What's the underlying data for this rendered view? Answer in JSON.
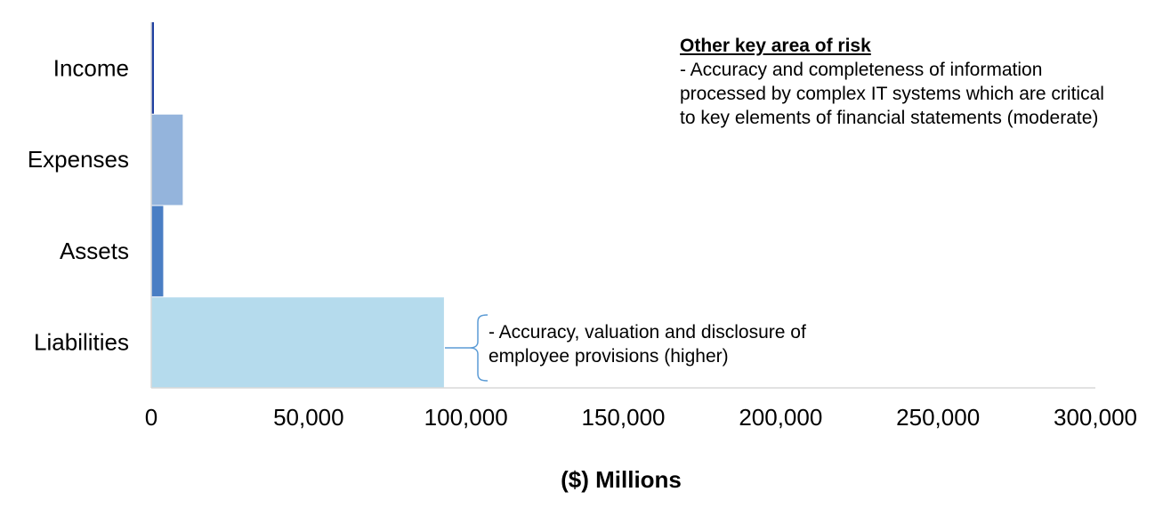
{
  "chart_data": {
    "type": "bar",
    "orientation": "horizontal",
    "categories": [
      "Income",
      "Expenses",
      "Assets",
      "Liabilities"
    ],
    "values": [
      700,
      10000,
      3800,
      93000
    ],
    "colors": [
      "#1f3fa0",
      "#94b4dc",
      "#4a7ec4",
      "#b5dbed"
    ],
    "xlabel": "($) Millions",
    "xlim": [
      0,
      300000
    ],
    "xticks": [
      0,
      50000,
      100000,
      150000,
      200000,
      250000,
      300000
    ],
    "xtick_labels": [
      "0",
      "50,000",
      "100,000",
      "150,000",
      "200,000",
      "250,000",
      "300,000"
    ],
    "grid": false,
    "legend": "none"
  },
  "annotations": {
    "other_risk": {
      "heading": "Other key area of risk",
      "text": "- Accuracy and completeness of information processed by complex IT systems which are critical to key elements of financial statements (moderate)"
    },
    "liabilities_risk": {
      "text": "- Accuracy, valuation and disclosure of employee provisions (higher)"
    }
  }
}
